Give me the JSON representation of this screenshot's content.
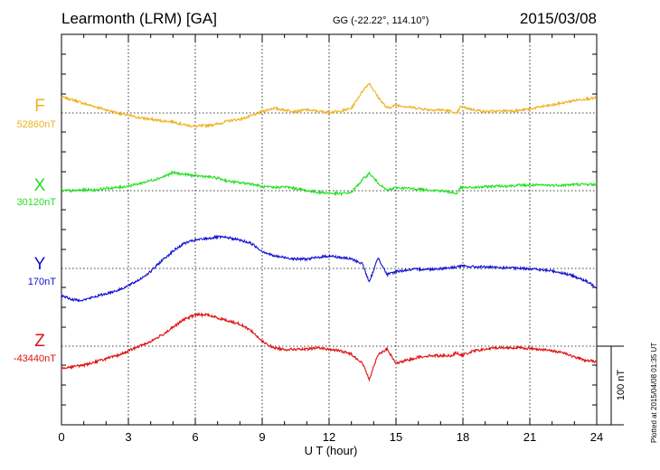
{
  "header": {
    "station": "Learmonth (LRM)  [GA]",
    "coords": "GG (-22.22°, 114.10°)",
    "date": "2015/03/08"
  },
  "footer": {
    "plotted": "Plotted at 2015/04/08 01:35 UT"
  },
  "colors": {
    "F": "#f0b020",
    "X": "#22e022",
    "Y": "#1010d0",
    "Z": "#e01010"
  },
  "chart_data": {
    "type": "line",
    "title": "Learmonth (LRM)  [GA]",
    "xlabel": "U T (hour)",
    "xlim": [
      0,
      24
    ],
    "x_ticks": [
      "0",
      "3",
      "6",
      "9",
      "12",
      "15",
      "18",
      "21",
      "24"
    ],
    "scale_bar": "100 nT",
    "grid": true,
    "series": [
      {
        "name": "F",
        "baseline_label": "52860nT",
        "x": [
          0,
          0.5,
          1,
          1.5,
          2,
          2.5,
          3,
          3.5,
          4,
          4.5,
          5,
          5.5,
          6,
          6.5,
          7,
          7.5,
          8,
          8.5,
          9,
          9.5,
          10,
          10.5,
          11,
          11.5,
          12,
          12.5,
          13,
          13.5,
          13.8,
          14.2,
          14.6,
          15,
          15.5,
          16,
          16.5,
          17,
          17.5,
          17.7,
          17.9,
          18.5,
          19,
          19.5,
          20,
          20.5,
          21,
          21.5,
          22,
          22.5,
          23,
          23.5,
          24
        ],
        "y": [
          20,
          17,
          12,
          8,
          4,
          0,
          -3,
          -6,
          -8,
          -10,
          -11,
          -15,
          -17,
          -16,
          -14,
          -10,
          -8,
          -4,
          2,
          6,
          4,
          2,
          4,
          2,
          1,
          2,
          6,
          28,
          38,
          20,
          6,
          10,
          8,
          6,
          4,
          4,
          2,
          -2,
          8,
          4,
          2,
          2,
          3,
          3,
          5,
          8,
          10,
          13,
          16,
          18,
          19
        ]
      },
      {
        "name": "X",
        "baseline_label": "30120nT",
        "x": [
          0,
          0.5,
          1,
          1.5,
          2,
          2.5,
          3,
          3.5,
          4,
          4.5,
          5,
          5.5,
          6,
          6.5,
          7,
          7.5,
          8,
          8.5,
          9,
          9.5,
          10,
          10.5,
          11,
          11.5,
          12,
          12.5,
          13,
          13.5,
          13.8,
          14.2,
          14.6,
          15,
          15.5,
          16,
          16.5,
          17,
          17.5,
          17.7,
          17.9,
          18.5,
          19,
          19.5,
          20,
          20.5,
          21,
          21.5,
          22,
          22.5,
          23,
          23.5,
          24
        ],
        "y": [
          0,
          0,
          1,
          1,
          3,
          4,
          6,
          9,
          13,
          17,
          23,
          21,
          19,
          18,
          16,
          12,
          10,
          9,
          5,
          4,
          5,
          3,
          0,
          -2,
          -3,
          -4,
          -2,
          14,
          22,
          10,
          0,
          4,
          3,
          2,
          1,
          0,
          -2,
          -4,
          4,
          4,
          5,
          6,
          6,
          7,
          7,
          7,
          7,
          7,
          8,
          8,
          8
        ]
      },
      {
        "name": "Y",
        "baseline_label": "170nT",
        "x": [
          0,
          0.5,
          1,
          1.5,
          2,
          2.5,
          3,
          3.5,
          4,
          4.5,
          5,
          5.5,
          6,
          6.5,
          7,
          7.5,
          8,
          8.5,
          9,
          9.5,
          10,
          10.5,
          11,
          11.5,
          12,
          12.5,
          13,
          13.5,
          13.8,
          14.2,
          14.6,
          15,
          15.5,
          16,
          16.5,
          17,
          17.5,
          17.7,
          17.9,
          18.5,
          19,
          19.5,
          20,
          20.5,
          21,
          21.5,
          22,
          22.5,
          23,
          23.5,
          24
        ],
        "y": [
          -34,
          -40,
          -40,
          -36,
          -32,
          -28,
          -22,
          -14,
          -4,
          10,
          22,
          32,
          36,
          38,
          40,
          39,
          36,
          32,
          22,
          16,
          14,
          12,
          12,
          14,
          16,
          14,
          12,
          6,
          -18,
          14,
          -8,
          -4,
          -2,
          -1,
          -1,
          0,
          1,
          2,
          3,
          2,
          2,
          1,
          1,
          0,
          0,
          -2,
          -3,
          -6,
          -10,
          -16,
          -24
        ]
      },
      {
        "name": "Z",
        "baseline_label": "-43440nT",
        "x": [
          0,
          0.5,
          1,
          1.5,
          2,
          2.5,
          3,
          3.5,
          4,
          4.5,
          5,
          5.5,
          6,
          6.5,
          7,
          7.5,
          8,
          8.5,
          9,
          9.5,
          10,
          10.5,
          11,
          11.5,
          12,
          12.5,
          13,
          13.5,
          13.8,
          14.2,
          14.6,
          15,
          15.5,
          16,
          16.5,
          17,
          17.5,
          17.7,
          17.9,
          18.5,
          19,
          19.5,
          20,
          20.5,
          21,
          21.5,
          22,
          22.5,
          23,
          23.5,
          24
        ],
        "y": [
          -28,
          -26,
          -24,
          -20,
          -16,
          -12,
          -6,
          0,
          6,
          14,
          24,
          34,
          40,
          40,
          36,
          32,
          28,
          20,
          6,
          -2,
          -4,
          -4,
          -4,
          -2,
          -4,
          -6,
          -10,
          -22,
          -42,
          -10,
          -4,
          -22,
          -18,
          -14,
          -12,
          -12,
          -12,
          -8,
          -12,
          -6,
          -4,
          -2,
          -2,
          -2,
          -3,
          -4,
          -6,
          -8,
          -14,
          -18,
          -20
        ]
      }
    ]
  }
}
